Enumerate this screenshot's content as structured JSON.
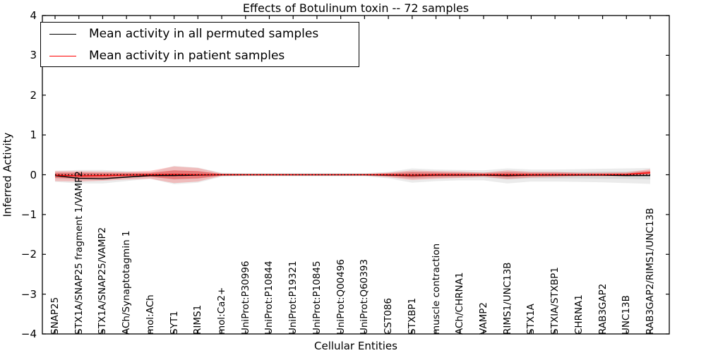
{
  "title": "Effects of Botulinum toxin -- 72 samples",
  "axes": {
    "ylabel": "Inferred Activity",
    "xlabel": "Cellular Entities",
    "yticks": [
      "4",
      "3",
      "2",
      "1",
      "0",
      "−1",
      "−2",
      "−3",
      "−4"
    ]
  },
  "legend": {
    "entries": [
      {
        "label": "Mean activity in all permuted samples",
        "color": "#000000"
      },
      {
        "label": "Mean activity in patient samples",
        "color": "#ff0000"
      }
    ]
  },
  "colors": {
    "permuted_line": "#000000",
    "patient_line": "#ff0000",
    "permuted_band": "rgba(0,0,0,0.08)",
    "patient_band_outer": "rgba(255,0,0,0.20)",
    "patient_band_inner": "rgba(255,0,0,0.30)",
    "zero_line": "#000000",
    "spine": "#000000"
  },
  "chart_data": {
    "type": "line",
    "title": "Effects of Botulinum toxin -- 72 samples",
    "xlabel": "Cellular Entities",
    "ylabel": "Inferred Activity",
    "ylim": [
      -4,
      4
    ],
    "grid": false,
    "legend_position": "upper left",
    "categories": [
      "SNAP25",
      "STX1A/SNAP25 fragment 1/VAMP2",
      "STX1A/SNAP25/VAMP2",
      "ACh/Synaptotagmin 1",
      "mol:ACh",
      "SYT1",
      "RIMS1",
      "mol:Ca2+",
      "UniProt:P30996",
      "UniProt:P10844",
      "UniProt:P19321",
      "UniProt:P10845",
      "UniProt:Q00496",
      "UniProt:Q60393",
      "CST086",
      "STXBP1",
      "muscle contraction",
      "ACh/CHRNA1",
      "VAMP2",
      "RIMS1/UNC13B",
      "STX1A",
      "STXIA/STXBP1",
      "CHRNA1",
      "RAB3GAP2",
      "UNC13B",
      "RAB3GAP2/RIMS1/UNC13B"
    ],
    "series": [
      {
        "name": "Mean activity in all permuted samples",
        "color": "#000000",
        "style": "solid",
        "values": [
          -0.02,
          -0.09,
          -0.1,
          -0.06,
          -0.02,
          -0.02,
          -0.01,
          0,
          0,
          0,
          0,
          0,
          0,
          0,
          -0.01,
          -0.02,
          -0.01,
          -0.01,
          -0.01,
          -0.02,
          -0.01,
          -0.01,
          -0.01,
          -0.01,
          -0.02,
          -0.02
        ]
      },
      {
        "name": "Mean activity in patient samples",
        "color": "#ff0000",
        "style": "solid",
        "values": [
          -0.01,
          -0.03,
          -0.02,
          -0.01,
          0,
          0.01,
          0,
          0,
          0,
          0,
          0,
          0,
          0,
          0,
          0,
          -0.01,
          0,
          0,
          0,
          0,
          0,
          0,
          0,
          0,
          0.01,
          0.05
        ]
      },
      {
        "name": "zero-reference",
        "color": "#000000",
        "style": "dotted",
        "values": [
          0,
          0,
          0,
          0,
          0,
          0,
          0,
          0,
          0,
          0,
          0,
          0,
          0,
          0,
          0,
          0,
          0,
          0,
          0,
          0,
          0,
          0,
          0,
          0,
          0,
          0
        ]
      }
    ],
    "bands": [
      {
        "name": "permuted-range-outer",
        "color": "rgba(0,0,0,0.08)",
        "upper": [
          0.1,
          0.12,
          0.12,
          0.09,
          0.06,
          0.22,
          0.18,
          0.05,
          0.04,
          0.04,
          0.04,
          0.04,
          0.04,
          0.04,
          0.07,
          0.16,
          0.13,
          0.12,
          0.11,
          0.16,
          0.13,
          0.13,
          0.14,
          0.15,
          0.16,
          0.17
        ],
        "lower": [
          -0.18,
          -0.22,
          -0.22,
          -0.16,
          -0.1,
          -0.24,
          -0.2,
          -0.05,
          -0.04,
          -0.04,
          -0.04,
          -0.04,
          -0.04,
          -0.04,
          -0.09,
          -0.2,
          -0.16,
          -0.14,
          -0.14,
          -0.22,
          -0.17,
          -0.17,
          -0.18,
          -0.19,
          -0.21,
          -0.23
        ]
      },
      {
        "name": "permuted-range-inner",
        "color": "rgba(0,0,0,0.08)",
        "upper": [
          0.05,
          0.06,
          0.06,
          0.05,
          0.03,
          0.11,
          0.09,
          0.02,
          0.02,
          0.02,
          0.02,
          0.02,
          0.02,
          0.02,
          0.04,
          0.08,
          0.07,
          0.06,
          0.06,
          0.08,
          0.07,
          0.07,
          0.07,
          0.08,
          0.08,
          0.09
        ],
        "lower": [
          -0.09,
          -0.11,
          -0.11,
          -0.08,
          -0.05,
          -0.12,
          -0.1,
          -0.02,
          -0.02,
          -0.02,
          -0.02,
          -0.02,
          -0.02,
          -0.02,
          -0.05,
          -0.1,
          -0.08,
          -0.07,
          -0.07,
          -0.11,
          -0.09,
          -0.09,
          -0.09,
          -0.1,
          -0.1,
          -0.12
        ]
      },
      {
        "name": "patient-range-outer",
        "color": "rgba(255,0,0,0.20)",
        "upper": [
          0.09,
          0.09,
          0.08,
          0.07,
          0.1,
          0.21,
          0.17,
          0.03,
          0.02,
          0.02,
          0.02,
          0.02,
          0.02,
          0.02,
          0.05,
          0.11,
          0.09,
          0.08,
          0.05,
          0.11,
          0.07,
          0.07,
          0.05,
          0.05,
          0.06,
          0.14
        ],
        "lower": [
          -0.16,
          -0.17,
          -0.15,
          -0.12,
          -0.1,
          -0.21,
          -0.17,
          -0.03,
          -0.02,
          -0.02,
          -0.02,
          -0.02,
          -0.02,
          -0.02,
          -0.06,
          -0.13,
          -0.1,
          -0.08,
          -0.05,
          -0.11,
          -0.07,
          -0.06,
          -0.04,
          -0.04,
          -0.04,
          -0.02
        ]
      },
      {
        "name": "patient-range-inner",
        "color": "rgba(255,0,0,0.30)",
        "upper": [
          0.05,
          0.05,
          0.04,
          0.04,
          0.05,
          0.11,
          0.09,
          0.02,
          0.01,
          0.01,
          0.01,
          0.01,
          0.01,
          0.01,
          0.03,
          0.06,
          0.05,
          0.04,
          0.03,
          0.06,
          0.04,
          0.04,
          0.03,
          0.03,
          0.03,
          0.1
        ],
        "lower": [
          -0.08,
          -0.09,
          -0.08,
          -0.06,
          -0.05,
          -0.11,
          -0.09,
          -0.02,
          -0.01,
          -0.01,
          -0.01,
          -0.01,
          -0.01,
          -0.01,
          -0.03,
          -0.07,
          -0.05,
          -0.04,
          -0.03,
          -0.06,
          -0.04,
          -0.03,
          -0.02,
          -0.02,
          -0.02,
          0.02
        ]
      }
    ]
  }
}
